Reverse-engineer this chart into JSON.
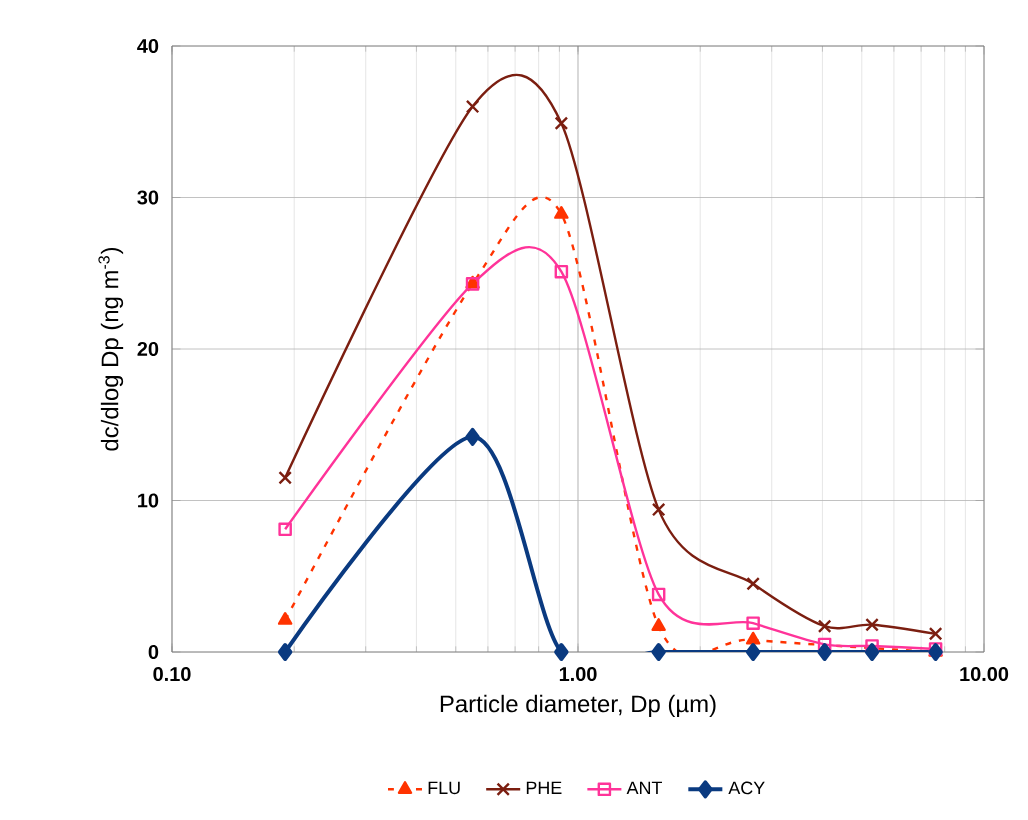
{
  "chart_data": {
    "type": "line",
    "xlabel": "Particle diameter, Dp (µm)",
    "ylabel": "dc/dlog Dp (ng m$^{-3}$)",
    "x": [
      0.19,
      0.55,
      0.91,
      1.58,
      2.7,
      4.05,
      5.3,
      7.6
    ],
    "series": [
      {
        "name": "FLU",
        "color": "#ff3300",
        "marker": "triangle",
        "line_style": "dashed",
        "values": [
          2.1,
          24.3,
          28.9,
          1.7,
          0.8,
          null,
          null,
          0
        ]
      },
      {
        "name": "PHE",
        "color": "#7b1e10",
        "marker": "cross",
        "line_style": "solid",
        "values": [
          11.5,
          36,
          34.9,
          9.4,
          4.5,
          1.7,
          1.8,
          1.2
        ]
      },
      {
        "name": "ANT",
        "color": "#ff3399",
        "marker": "square",
        "line_style": "solid",
        "values": [
          8.1,
          24.3,
          25.1,
          3.8,
          1.9,
          0.5,
          0.4,
          0.2
        ]
      },
      {
        "name": "ACY",
        "color": "#0a3a80",
        "marker": "diamond",
        "line_style": "solid",
        "values": [
          0,
          14.2,
          0,
          0,
          0,
          0,
          0,
          0
        ]
      }
    ],
    "log": "x",
    "grid": true,
    "legend": "bottom",
    "xlim": [
      0.1,
      10
    ],
    "ylim": [
      0,
      40
    ],
    "xticks": [
      {
        "value": 0.1,
        "label": "0.10"
      },
      {
        "value": 1,
        "label": "1.00"
      },
      {
        "value": 10,
        "label": "10.00"
      }
    ],
    "yticks": [
      0,
      10,
      20,
      30,
      40
    ]
  }
}
